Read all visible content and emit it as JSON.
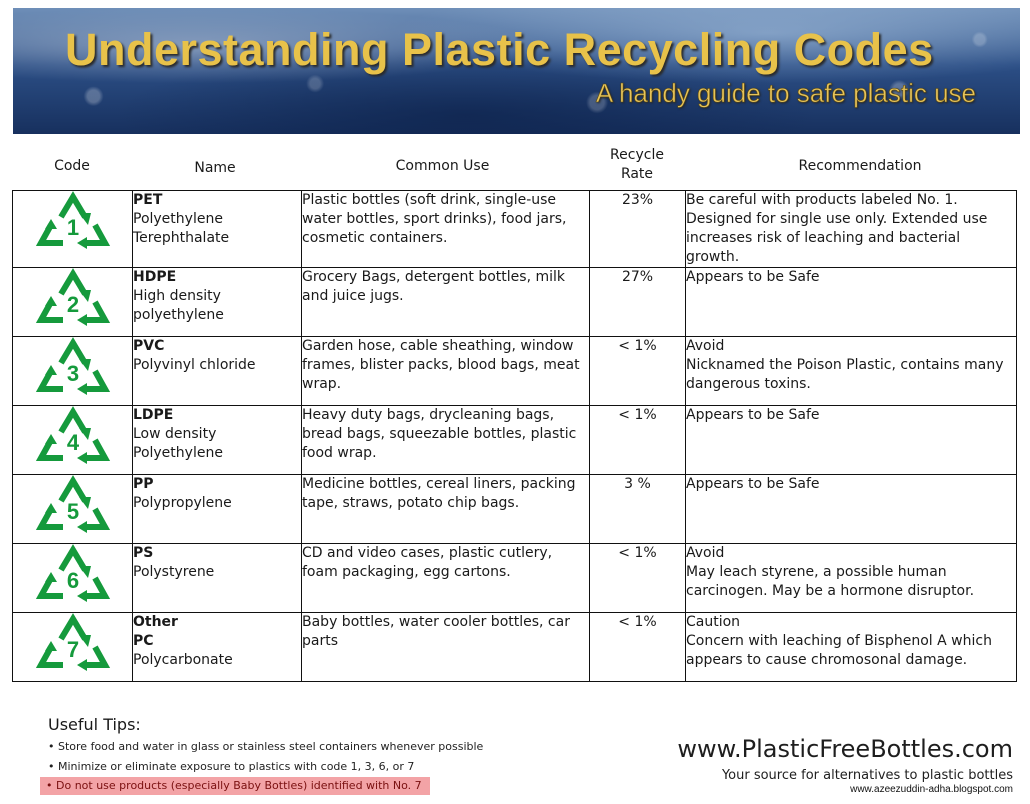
{
  "header": {
    "title": "Understanding Plastic Recycling Codes",
    "subtitle": "A handy guide to safe plastic use"
  },
  "columns": {
    "code": "Code",
    "name": "Name",
    "common_use": "Common Use",
    "recycle_rate": "Recycle\nRate",
    "recommendation": "Recommendation"
  },
  "symbol_color": "#159a3c",
  "rows": [
    {
      "code": "1",
      "abbr": "PET",
      "name": "Polyethylene\nTerephthalate",
      "use": "Plastic bottles (soft drink, single-use water bottles, sport drinks), food jars, cosmetic containers.",
      "rate": "23%",
      "recommendation": "Be careful with products labeled No. 1. Designed for single use only.  Extended use increases risk of leaching and bacterial growth."
    },
    {
      "code": "2",
      "abbr": "HDPE",
      "name": "High density\npolyethylene",
      "use": "Grocery Bags, detergent bottles, milk and juice jugs.",
      "rate": "27%",
      "recommendation": "Appears to be Safe"
    },
    {
      "code": "3",
      "abbr": "PVC",
      "name": "Polyvinyl chloride",
      "use": "Garden hose, cable sheathing, window frames, blister packs, blood bags, meat wrap.",
      "rate": "<  1%",
      "recommendation": "Avoid\nNicknamed the Poison Plastic, contains many dangerous toxins."
    },
    {
      "code": "4",
      "abbr": "LDPE",
      "name": "Low density\nPolyethylene",
      "use": "Heavy duty bags, drycleaning bags, bread bags, squeezable bottles, plastic food wrap.",
      "rate": "<  1%",
      "recommendation": "Appears to be Safe"
    },
    {
      "code": "5",
      "abbr": "PP",
      "name": "Polypropylene",
      "use": "Medicine bottles, cereal liners, packing tape, straws, potato chip bags.",
      "rate": "3 %",
      "recommendation": "Appears to be Safe"
    },
    {
      "code": "6",
      "abbr": "PS",
      "name": "Polystyrene",
      "use": "CD and video cases, plastic cutlery, foam packaging, egg cartons.",
      "rate": "< 1%",
      "recommendation": "Avoid\nMay leach styrene, a possible human carcinogen.  May be a hormone disruptor."
    },
    {
      "code": "7",
      "abbr": "Other\nPC",
      "name": "Polycarbonate",
      "use": "Baby bottles, water cooler bottles, car parts",
      "rate": "< 1%",
      "recommendation": "Caution\nConcern with leaching of Bisphenol A which appears to cause chromosonal damage."
    }
  ],
  "tips": {
    "title": "Useful Tips:",
    "items": [
      "Store food and water in glass or stainless steel containers whenever possible",
      "Minimize or eliminate exposure to plastics with code 1, 3, 6, or 7",
      "Do not use products (especially Baby Bottles) identified with No. 7"
    ],
    "highlight_color": "#f3a3a6"
  },
  "footer": {
    "site": "www.PlasticFreeBottles.com",
    "tagline": "Your source for alternatives to plastic bottles",
    "credit": "www.azeezuddin-adha.blogspot.com"
  }
}
